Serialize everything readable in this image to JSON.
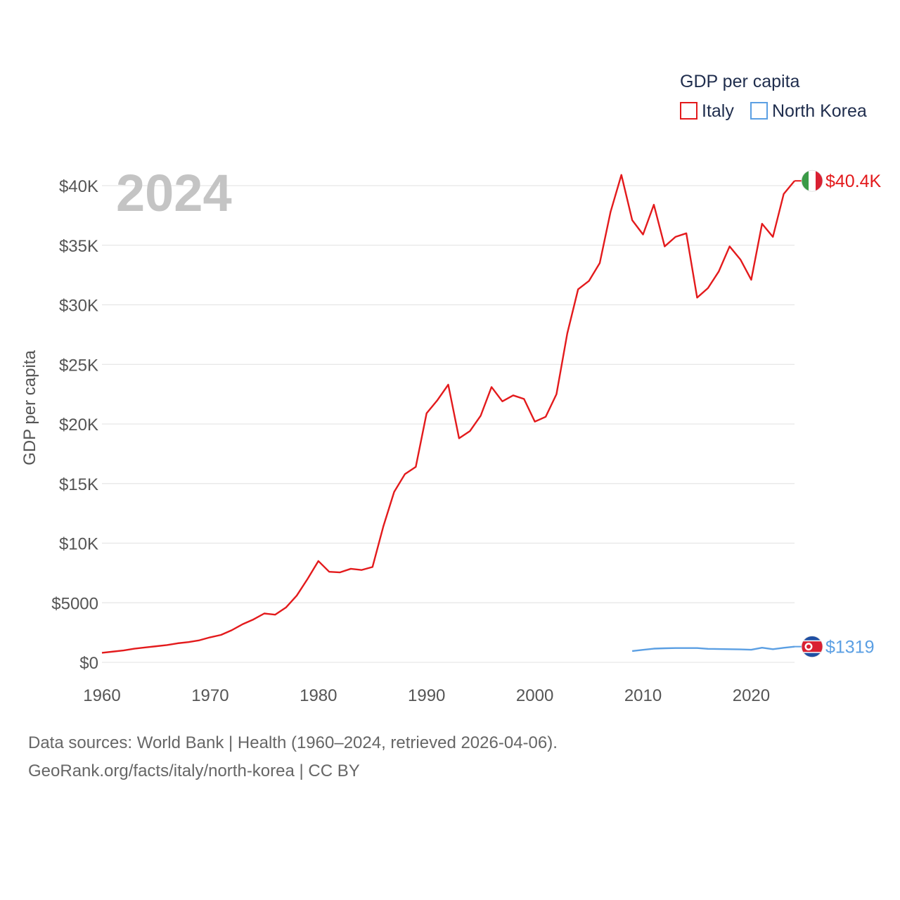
{
  "chart_data": {
    "type": "line",
    "title": "",
    "year_label": "2024",
    "legend": {
      "title": "GDP per capita",
      "placement": "top-right"
    },
    "ylabel": "GDP per capita",
    "xlabel": "",
    "xlim": [
      1960,
      2024
    ],
    "ylim": [
      0,
      42000
    ],
    "x_ticks": [
      1960,
      1970,
      1980,
      1990,
      2000,
      2010,
      2020
    ],
    "y_ticks": [
      {
        "value": 0,
        "label": "$0"
      },
      {
        "value": 5000,
        "label": "$5000"
      },
      {
        "value": 10000,
        "label": "$10K"
      },
      {
        "value": 15000,
        "label": "$15K"
      },
      {
        "value": 20000,
        "label": "$20K"
      },
      {
        "value": 25000,
        "label": "$25K"
      },
      {
        "value": 30000,
        "label": "$30K"
      },
      {
        "value": 35000,
        "label": "$35K"
      },
      {
        "value": 40000,
        "label": "$40K"
      }
    ],
    "grid": true,
    "series": [
      {
        "name": "Italy",
        "color": "#e31a1c",
        "end_label": "$40.4K",
        "flag": "italy-flag",
        "points": [
          [
            1960,
            800
          ],
          [
            1961,
            900
          ],
          [
            1962,
            1000
          ],
          [
            1963,
            1150
          ],
          [
            1964,
            1250
          ],
          [
            1965,
            1350
          ],
          [
            1966,
            1450
          ],
          [
            1967,
            1600
          ],
          [
            1968,
            1700
          ],
          [
            1969,
            1850
          ],
          [
            1970,
            2100
          ],
          [
            1971,
            2300
          ],
          [
            1972,
            2700
          ],
          [
            1973,
            3200
          ],
          [
            1974,
            3600
          ],
          [
            1975,
            4100
          ],
          [
            1976,
            4000
          ],
          [
            1977,
            4600
          ],
          [
            1978,
            5600
          ],
          [
            1979,
            7000
          ],
          [
            1980,
            8500
          ],
          [
            1981,
            7600
          ],
          [
            1982,
            7550
          ],
          [
            1983,
            7850
          ],
          [
            1984,
            7750
          ],
          [
            1985,
            8000
          ],
          [
            1986,
            11400
          ],
          [
            1987,
            14300
          ],
          [
            1988,
            15800
          ],
          [
            1989,
            16400
          ],
          [
            1990,
            20900
          ],
          [
            1991,
            22000
          ],
          [
            1992,
            23300
          ],
          [
            1993,
            18800
          ],
          [
            1994,
            19400
          ],
          [
            1995,
            20700
          ],
          [
            1996,
            23100
          ],
          [
            1997,
            21900
          ],
          [
            1998,
            22400
          ],
          [
            1999,
            22100
          ],
          [
            2000,
            20200
          ],
          [
            2001,
            20600
          ],
          [
            2002,
            22500
          ],
          [
            2003,
            27600
          ],
          [
            2004,
            31300
          ],
          [
            2005,
            32000
          ],
          [
            2006,
            33500
          ],
          [
            2007,
            37800
          ],
          [
            2008,
            40900
          ],
          [
            2009,
            37100
          ],
          [
            2010,
            35900
          ],
          [
            2011,
            38400
          ],
          [
            2012,
            34900
          ],
          [
            2013,
            35700
          ],
          [
            2014,
            36000
          ],
          [
            2015,
            30600
          ],
          [
            2016,
            31400
          ],
          [
            2017,
            32800
          ],
          [
            2018,
            34900
          ],
          [
            2019,
            33800
          ],
          [
            2020,
            32100
          ],
          [
            2021,
            36800
          ],
          [
            2022,
            35700
          ],
          [
            2023,
            39300
          ],
          [
            2024,
            40400
          ]
        ]
      },
      {
        "name": "North Korea",
        "color": "#5b9fe3",
        "end_label": "$1319",
        "flag": "north-korea-flag",
        "points": [
          [
            2009,
            950
          ],
          [
            2010,
            1050
          ],
          [
            2011,
            1150
          ],
          [
            2012,
            1180
          ],
          [
            2013,
            1200
          ],
          [
            2014,
            1200
          ],
          [
            2015,
            1200
          ],
          [
            2016,
            1130
          ],
          [
            2017,
            1120
          ],
          [
            2018,
            1100
          ],
          [
            2019,
            1090
          ],
          [
            2020,
            1060
          ],
          [
            2021,
            1230
          ],
          [
            2022,
            1100
          ],
          [
            2023,
            1220
          ],
          [
            2024,
            1319
          ]
        ]
      }
    ]
  },
  "footer": {
    "line1": "Data sources: World Bank | Health (1960–2024, retrieved 2026-04-06).",
    "line2": "GeoRank.org/facts/italy/north-korea | CC BY"
  }
}
